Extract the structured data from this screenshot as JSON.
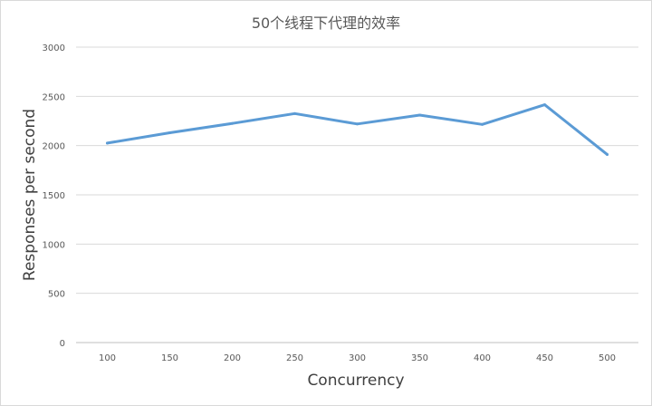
{
  "chart_data": {
    "type": "line",
    "title": "50个线程下代理的效率",
    "xlabel": "Concurrency",
    "ylabel": "Responses per second",
    "categories": [
      "100",
      "150",
      "200",
      "250",
      "300",
      "350",
      "400",
      "450",
      "500"
    ],
    "series": [
      {
        "values": [
          2025,
          2130,
          2225,
          2325,
          2220,
          2310,
          2215,
          2415,
          1910
        ],
        "color": "#5b9bd5"
      }
    ],
    "ylim": [
      0,
      3000
    ],
    "yticks": [
      "0",
      "500",
      "1000",
      "1500",
      "2000",
      "2500",
      "3000"
    ],
    "ytick_values": [
      0,
      500,
      1000,
      1500,
      2000,
      2500,
      3000
    ],
    "grid": true,
    "legend": "none",
    "colors": {
      "grid": "#d9d9d9",
      "axis": "#bfbfbf",
      "text": "#595959"
    }
  }
}
